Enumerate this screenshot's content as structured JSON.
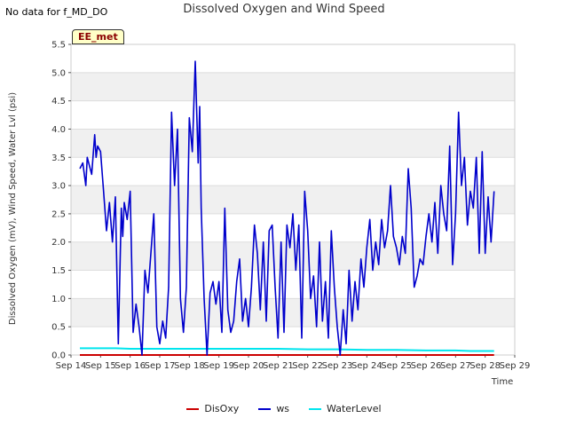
{
  "notice": "No data for f_MD_DO",
  "site_badge": "EE_met",
  "chart_data": {
    "type": "line",
    "title": "Dissolved Oxygen and Wind Speed",
    "xlabel": "Time",
    "ylabel": "Dissolved Oxygen (mV), Wind Speed, Water Lvl (psi)",
    "ylim": [
      0,
      5.5
    ],
    "xlim": [
      14,
      29
    ],
    "yticks": [
      "0.0",
      "0.5",
      "1.0",
      "1.5",
      "2.0",
      "2.5",
      "3.0",
      "3.5",
      "4.0",
      "4.5",
      "5.0",
      "5.5"
    ],
    "xticks": [
      "Sep 14",
      "Sep 15",
      "Sep 16",
      "Sep 17",
      "Sep 18",
      "Sep 19",
      "Sep 20",
      "Sep 21",
      "Sep 22",
      "Sep 23",
      "Sep 24",
      "Sep 25",
      "Sep 26",
      "Sep 27",
      "Sep 28",
      "Sep 29"
    ],
    "legend": "bottom",
    "series": [
      {
        "name": "DisOxy",
        "color": "#cc0000",
        "x": [
          14.3,
          28.3
        ],
        "y": [
          0.0,
          0.0
        ]
      },
      {
        "name": "ws",
        "color": "#0000cc",
        "x": [
          14.3,
          14.4,
          14.5,
          14.55,
          14.7,
          14.8,
          14.85,
          14.9,
          15.0,
          15.1,
          15.2,
          15.3,
          15.4,
          15.5,
          15.6,
          15.7,
          15.75,
          15.8,
          15.9,
          16.0,
          16.1,
          16.2,
          16.3,
          16.4,
          16.5,
          16.6,
          16.7,
          16.8,
          16.9,
          17.0,
          17.1,
          17.2,
          17.3,
          17.4,
          17.5,
          17.6,
          17.7,
          17.8,
          17.9,
          18.0,
          18.1,
          18.2,
          18.3,
          18.35,
          18.4,
          18.5,
          18.6,
          18.7,
          18.8,
          18.9,
          19.0,
          19.1,
          19.2,
          19.3,
          19.4,
          19.5,
          19.6,
          19.7,
          19.8,
          19.9,
          20.0,
          20.1,
          20.2,
          20.3,
          20.4,
          20.5,
          20.6,
          20.7,
          20.8,
          20.9,
          21.0,
          21.1,
          21.2,
          21.3,
          21.4,
          21.5,
          21.6,
          21.7,
          21.8,
          21.9,
          22.0,
          22.1,
          22.2,
          22.3,
          22.4,
          22.5,
          22.6,
          22.7,
          22.8,
          22.9,
          23.0,
          23.1,
          23.2,
          23.3,
          23.4,
          23.5,
          23.6,
          23.7,
          23.8,
          23.9,
          24.0,
          24.1,
          24.2,
          24.3,
          24.4,
          24.5,
          24.6,
          24.7,
          24.8,
          24.9,
          25.0,
          25.1,
          25.2,
          25.3,
          25.4,
          25.5,
          25.6,
          25.7,
          25.8,
          25.9,
          26.0,
          26.1,
          26.2,
          26.3,
          26.4,
          26.5,
          26.6,
          26.7,
          26.8,
          26.9,
          27.0,
          27.1,
          27.2,
          27.3,
          27.4,
          27.5,
          27.6,
          27.7,
          27.8,
          27.9,
          28.0,
          28.1,
          28.2,
          28.3
        ],
        "y": [
          3.3,
          3.4,
          3.0,
          3.5,
          3.2,
          3.9,
          3.5,
          3.7,
          3.6,
          2.9,
          2.2,
          2.7,
          2.0,
          2.8,
          0.2,
          2.6,
          2.1,
          2.7,
          2.4,
          2.9,
          0.4,
          0.9,
          0.5,
          0.0,
          1.5,
          1.1,
          1.8,
          2.5,
          0.5,
          0.2,
          0.6,
          0.3,
          1.2,
          4.3,
          3.0,
          4.0,
          1.0,
          0.4,
          1.2,
          4.2,
          3.6,
          5.2,
          3.4,
          4.4,
          2.6,
          1.0,
          0.0,
          1.1,
          1.3,
          0.9,
          1.3,
          0.4,
          2.6,
          0.8,
          0.4,
          0.6,
          1.3,
          1.7,
          0.6,
          1.0,
          0.5,
          1.2,
          2.3,
          1.8,
          0.8,
          2.0,
          0.6,
          2.2,
          2.3,
          1.2,
          0.3,
          2.0,
          0.4,
          2.3,
          1.9,
          2.5,
          1.5,
          2.3,
          0.3,
          2.9,
          2.2,
          1.0,
          1.4,
          0.5,
          2.0,
          0.6,
          1.3,
          0.3,
          2.2,
          1.2,
          0.5,
          0.0,
          0.8,
          0.2,
          1.5,
          0.6,
          1.3,
          0.8,
          1.7,
          1.2,
          1.9,
          2.4,
          1.5,
          2.0,
          1.6,
          2.4,
          1.9,
          2.2,
          3.0,
          2.1,
          1.9,
          1.6,
          2.1,
          1.8,
          3.3,
          2.6,
          1.2,
          1.4,
          1.7,
          1.6,
          2.1,
          2.5,
          2.0,
          2.7,
          1.8,
          3.0,
          2.5,
          2.2,
          3.7,
          1.6,
          2.5,
          4.3,
          3.0,
          3.5,
          2.3,
          2.9,
          2.6,
          3.5,
          1.8,
          3.6,
          1.8,
          2.8,
          2.0,
          2.9
        ]
      },
      {
        "name": "WaterLevel",
        "color": "#00e5ee",
        "x": [
          14.3,
          15.0,
          15.5,
          16.0,
          17.0,
          18.0,
          19.0,
          20.0,
          21.0,
          22.0,
          23.0,
          24.0,
          25.0,
          26.0,
          27.0,
          27.5,
          28.0,
          28.3
        ],
        "y": [
          0.12,
          0.12,
          0.12,
          0.11,
          0.11,
          0.11,
          0.11,
          0.11,
          0.11,
          0.1,
          0.1,
          0.09,
          0.09,
          0.08,
          0.08,
          0.07,
          0.07,
          0.07
        ]
      }
    ]
  }
}
